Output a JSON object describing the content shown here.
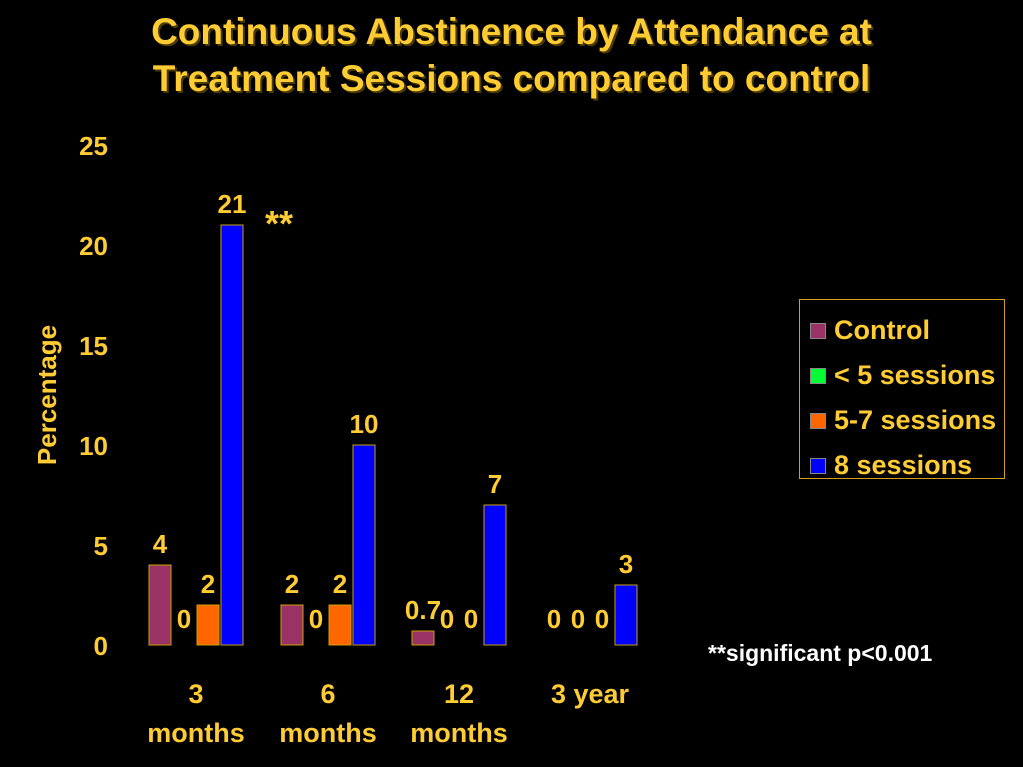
{
  "title": {
    "line1": "Continuous Abstinence by Attendance at",
    "line2": "Treatment Sessions compared to control"
  },
  "footnote": "**significant p<0.001",
  "significance_marker": "**",
  "chart_data": {
    "type": "bar",
    "title": "Continuous Abstinence by Attendance at Treatment Sessions compared to control",
    "ylabel": "Percentage",
    "xlabel": "",
    "ylim": [
      0,
      25
    ],
    "yticks": [
      0,
      5,
      10,
      15,
      20,
      25
    ],
    "categories": [
      [
        "3",
        "months"
      ],
      [
        "6",
        "months"
      ],
      [
        "12",
        "months"
      ],
      [
        "3 year"
      ]
    ],
    "series": [
      {
        "name": "Control",
        "color": "#993366",
        "values": [
          4,
          2,
          0.7,
          0
        ],
        "labels": [
          "4",
          "2",
          "0.7",
          "0"
        ]
      },
      {
        "name": "< 5 sessions",
        "color": "#00FF33",
        "values": [
          0,
          0,
          0,
          0
        ],
        "labels": [
          "0",
          "0",
          "0",
          "0"
        ]
      },
      {
        "name": "5-7 sessions",
        "color": "#FF6600",
        "values": [
          2,
          2,
          0,
          0
        ],
        "labels": [
          "2",
          "2",
          "0",
          "0"
        ]
      },
      {
        "name": "8 sessions",
        "color": "#0000FF",
        "values": [
          21,
          10,
          7,
          3
        ],
        "labels": [
          "21",
          "10",
          "7",
          "3"
        ]
      }
    ],
    "legend": "right",
    "grid": false
  }
}
